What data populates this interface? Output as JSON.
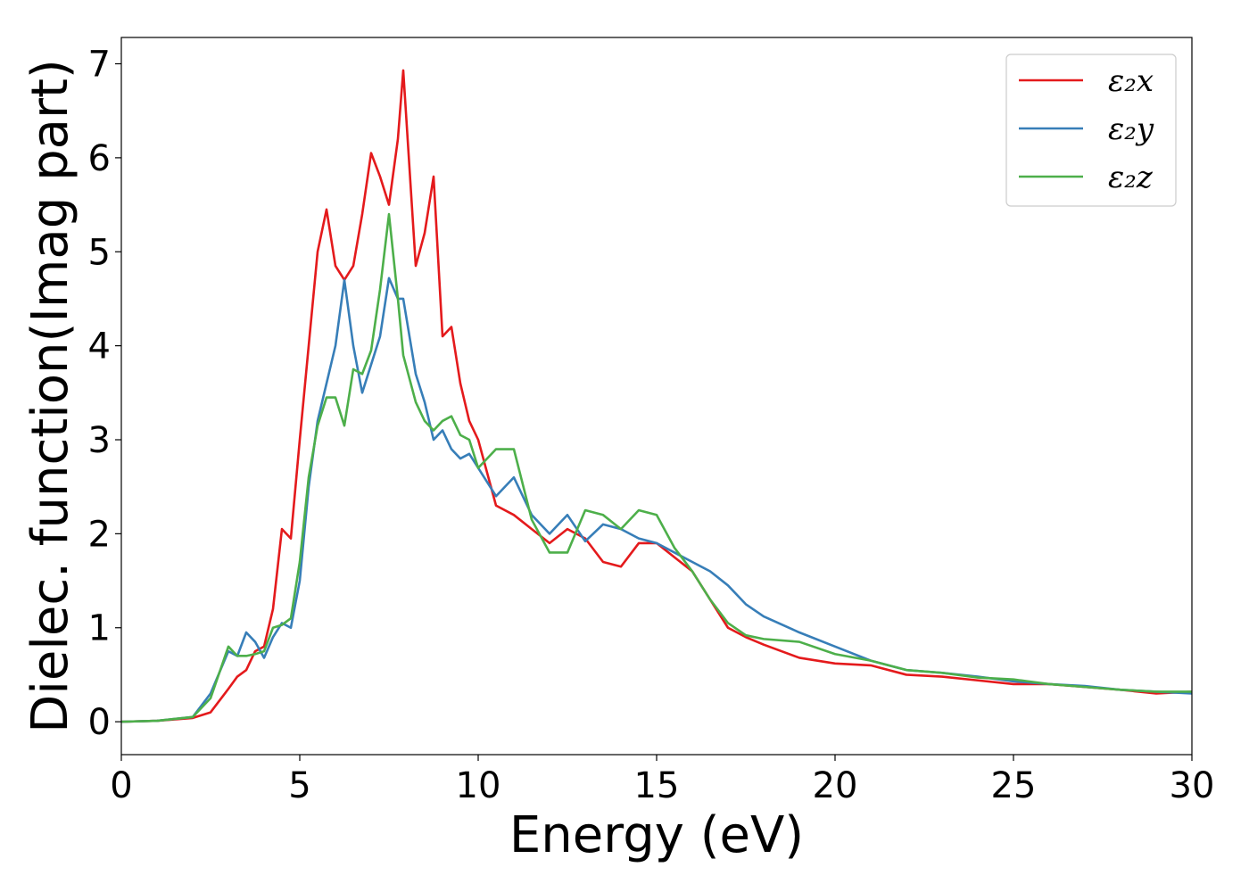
{
  "chart_data": {
    "type": "line",
    "xlabel": "Energy (eV)",
    "ylabel": "Dielec. function(Imag part)",
    "x": [
      0,
      1,
      2,
      2.5,
      3,
      3.25,
      3.5,
      3.75,
      4,
      4.25,
      4.5,
      4.75,
      5,
      5.25,
      5.5,
      5.75,
      6,
      6.25,
      6.5,
      6.75,
      7,
      7.25,
      7.5,
      7.75,
      7.9,
      8.25,
      8.5,
      8.75,
      9,
      9.25,
      9.5,
      9.75,
      10,
      10.5,
      11,
      11.5,
      12,
      12.5,
      13,
      13.5,
      14,
      14.5,
      15,
      15.5,
      16,
      16.5,
      17,
      17.5,
      18,
      19,
      20,
      21,
      22,
      23,
      24,
      25,
      26,
      27,
      28,
      29,
      30
    ],
    "series": [
      {
        "name": "ε₂x",
        "color": "#e41a1c",
        "values": [
          0,
          0.01,
          0.04,
          0.1,
          0.35,
          0.48,
          0.55,
          0.75,
          0.8,
          1.2,
          2.05,
          1.95,
          3.0,
          4.0,
          5.0,
          5.45,
          4.85,
          4.7,
          4.85,
          5.4,
          6.05,
          5.8,
          5.5,
          6.2,
          6.93,
          4.85,
          5.2,
          5.8,
          4.1,
          4.2,
          3.6,
          3.2,
          3.0,
          2.3,
          2.2,
          2.05,
          1.9,
          2.05,
          1.95,
          1.7,
          1.65,
          1.9,
          1.9,
          1.75,
          1.6,
          1.3,
          1.0,
          0.9,
          0.82,
          0.68,
          0.62,
          0.6,
          0.5,
          0.48,
          0.44,
          0.4,
          0.4,
          0.37,
          0.34,
          0.3,
          0.32
        ]
      },
      {
        "name": "ε₂y",
        "color": "#377eb8",
        "values": [
          0,
          0.01,
          0.05,
          0.3,
          0.75,
          0.7,
          0.95,
          0.85,
          0.68,
          0.9,
          1.05,
          1.0,
          1.5,
          2.5,
          3.2,
          3.6,
          4.0,
          4.7,
          4.0,
          3.5,
          3.8,
          4.1,
          4.72,
          4.5,
          4.5,
          3.7,
          3.4,
          3.0,
          3.1,
          2.9,
          2.8,
          2.85,
          2.7,
          2.4,
          2.6,
          2.2,
          2.0,
          2.2,
          1.92,
          2.1,
          2.05,
          1.95,
          1.9,
          1.8,
          1.7,
          1.6,
          1.45,
          1.25,
          1.12,
          0.95,
          0.8,
          0.65,
          0.55,
          0.52,
          0.48,
          0.43,
          0.4,
          0.38,
          0.34,
          0.32,
          0.3
        ]
      },
      {
        "name": "ε₂z",
        "color": "#4daf4a",
        "values": [
          0,
          0.01,
          0.05,
          0.25,
          0.8,
          0.7,
          0.7,
          0.72,
          0.75,
          1.0,
          1.03,
          1.1,
          1.7,
          2.6,
          3.15,
          3.45,
          3.45,
          3.15,
          3.75,
          3.7,
          3.95,
          4.6,
          5.4,
          4.5,
          3.9,
          3.4,
          3.2,
          3.1,
          3.2,
          3.25,
          3.05,
          3.0,
          2.7,
          2.9,
          2.9,
          2.15,
          1.8,
          1.8,
          2.25,
          2.2,
          2.05,
          2.25,
          2.2,
          1.85,
          1.6,
          1.3,
          1.05,
          0.92,
          0.88,
          0.85,
          0.72,
          0.65,
          0.55,
          0.52,
          0.47,
          0.45,
          0.4,
          0.37,
          0.34,
          0.32,
          0.32
        ]
      }
    ],
    "xlim": [
      0,
      30
    ],
    "xticks": [
      0,
      5,
      10,
      15,
      20,
      25,
      30
    ],
    "ylim": [
      -0.35,
      7.28
    ],
    "yticks": [
      0,
      1,
      2,
      3,
      4,
      5,
      6,
      7
    ],
    "grid": false,
    "legend": "upper right"
  }
}
